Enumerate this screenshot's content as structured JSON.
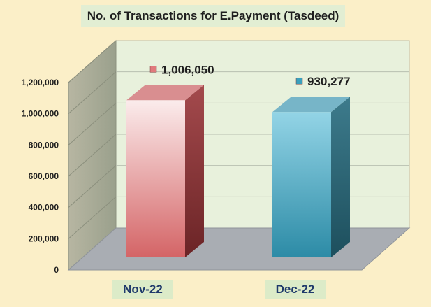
{
  "chart_data": {
    "type": "bar",
    "title": "No. of Transactions for E.Payment (Tasdeed)",
    "categories": [
      "Nov-22",
      "Dec-22"
    ],
    "values": [
      1006050,
      930277
    ],
    "data_labels": [
      "1,006,050",
      "930,277"
    ],
    "yticks": [
      "0",
      "200,000",
      "400,000",
      "600,000",
      "800,000",
      "1,000,000",
      "1,200,000"
    ],
    "ylim": [
      0,
      1200000
    ],
    "grid": true,
    "legend": "none",
    "bar_colors": [
      "#d9686b",
      "#3aa0bd"
    ],
    "style": "3d-column"
  }
}
